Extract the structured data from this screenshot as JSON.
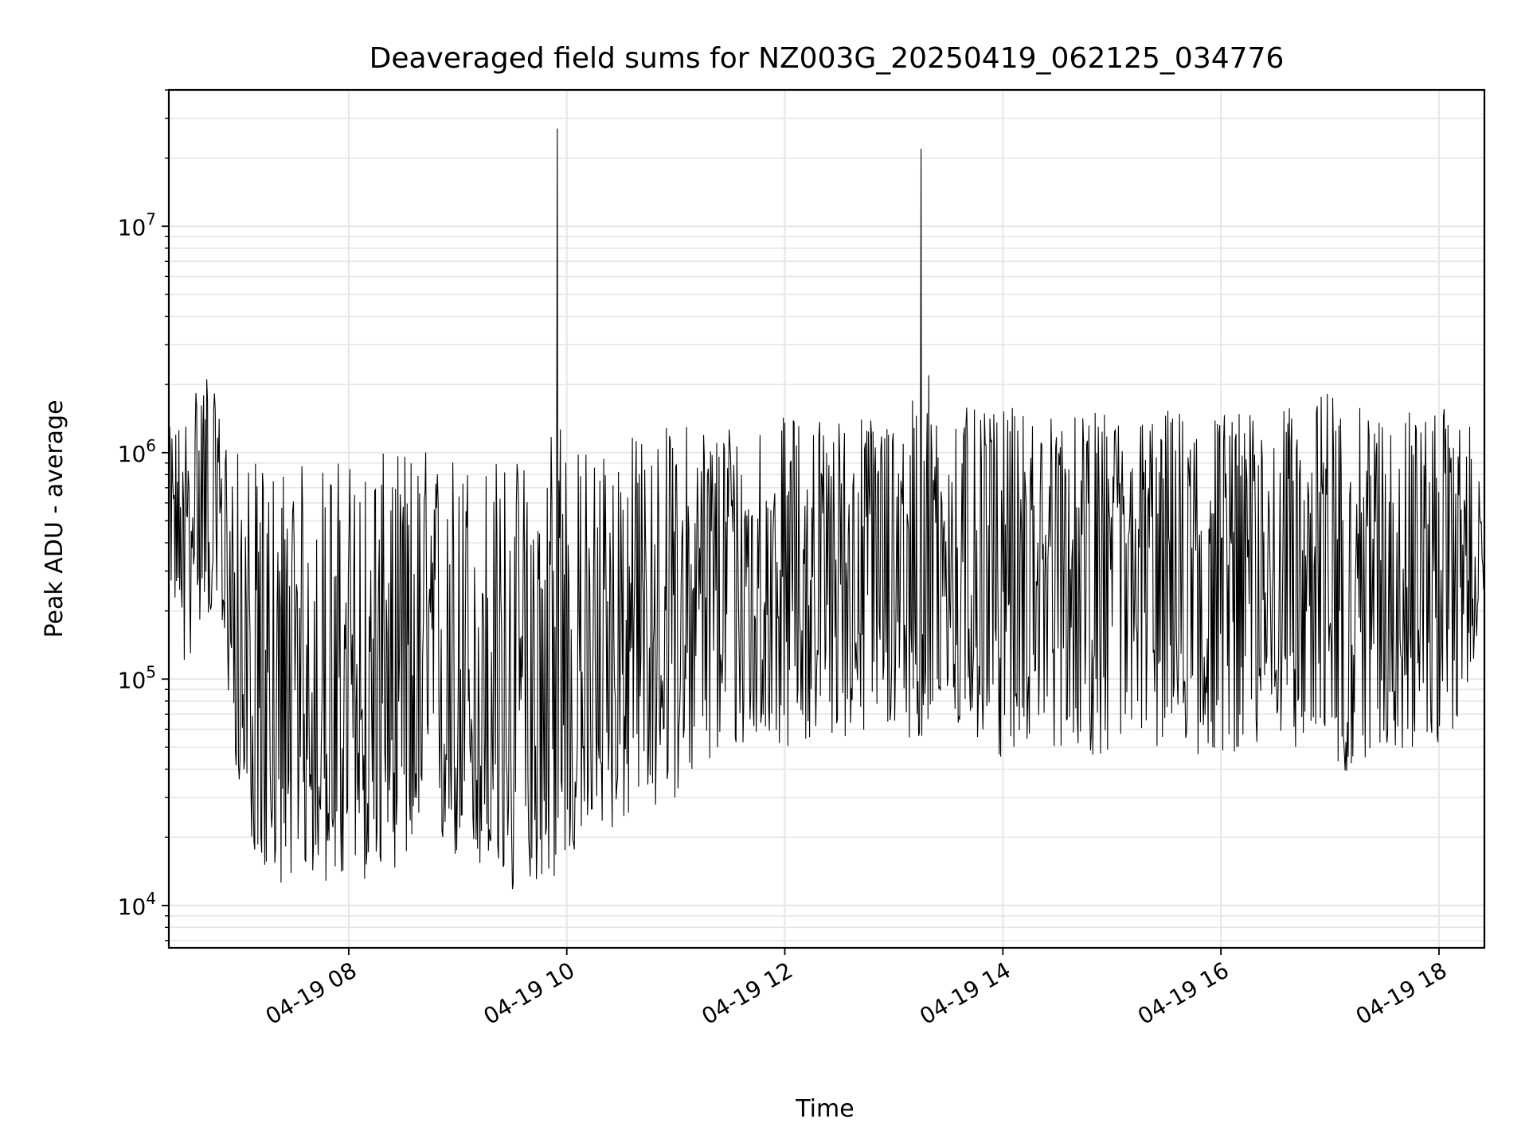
{
  "chart_data": {
    "type": "line",
    "title": "Deaveraged field sums for NZ003G_20250419_062125_034776",
    "xlabel": "Time",
    "ylabel": "Peak ADU - average",
    "y_scale": "log",
    "ylim": [
      6500,
      40000000
    ],
    "xlim": [
      "2025-04-19 06:21",
      "2025-04-19 18:25"
    ],
    "grid": true,
    "line_color": "#000000",
    "grid_color": "#e6e6e6",
    "x_ticks": [
      "2025-04-19 08:00",
      "2025-04-19 10:00",
      "2025-04-19 12:00",
      "2025-04-19 14:00",
      "2025-04-19 16:00",
      "2025-04-19 18:00"
    ],
    "x_tick_labels": [
      "04-19 08",
      "04-19 10",
      "04-19 12",
      "04-19 14",
      "04-19 16",
      "04-19 18"
    ],
    "y_ticks": [
      10000,
      100000,
      1000000,
      10000000
    ],
    "y_tick_bases": [
      "10",
      "10",
      "10",
      "10"
    ],
    "y_tick_exponents": [
      "4",
      "5",
      "6",
      "7"
    ],
    "series": [
      {
        "x": [
          "2025-04-19 06:21",
          "2025-04-19 06:30",
          "2025-04-19 06:40",
          "2025-04-19 06:50",
          "2025-04-19 07:00",
          "2025-04-19 07:10",
          "2025-04-19 07:20",
          "2025-04-19 07:30",
          "2025-04-19 07:40",
          "2025-04-19 07:50",
          "2025-04-19 08:00",
          "2025-04-19 08:10",
          "2025-04-19 08:20",
          "2025-04-19 08:30",
          "2025-04-19 08:40",
          "2025-04-19 08:50",
          "2025-04-19 09:00",
          "2025-04-19 09:10",
          "2025-04-19 09:20",
          "2025-04-19 09:30",
          "2025-04-19 09:40",
          "2025-04-19 09:50",
          "2025-04-19 09:55",
          "2025-04-19 10:00",
          "2025-04-19 10:10",
          "2025-04-19 10:20",
          "2025-04-19 10:30",
          "2025-04-19 10:40",
          "2025-04-19 10:50",
          "2025-04-19 11:00",
          "2025-04-19 11:10",
          "2025-04-19 11:20",
          "2025-04-19 11:30",
          "2025-04-19 11:40",
          "2025-04-19 11:50",
          "2025-04-19 12:00",
          "2025-04-19 12:10",
          "2025-04-19 12:20",
          "2025-04-19 12:30",
          "2025-04-19 12:40",
          "2025-04-19 12:50",
          "2025-04-19 13:00",
          "2025-04-19 13:10",
          "2025-04-19 13:15",
          "2025-04-19 13:20",
          "2025-04-19 13:30",
          "2025-04-19 13:40",
          "2025-04-19 13:50",
          "2025-04-19 14:00",
          "2025-04-19 14:10",
          "2025-04-19 14:20",
          "2025-04-19 14:30",
          "2025-04-19 14:40",
          "2025-04-19 14:50",
          "2025-04-19 15:00",
          "2025-04-19 15:10",
          "2025-04-19 15:20",
          "2025-04-19 15:30",
          "2025-04-19 15:40",
          "2025-04-19 15:50",
          "2025-04-19 16:00",
          "2025-04-19 16:10",
          "2025-04-19 16:20",
          "2025-04-19 16:30",
          "2025-04-19 16:40",
          "2025-04-19 16:50",
          "2025-04-19 17:00",
          "2025-04-19 17:10",
          "2025-04-19 17:20",
          "2025-04-19 17:30",
          "2025-04-19 17:40",
          "2025-04-19 17:50",
          "2025-04-19 18:00",
          "2025-04-19 18:10",
          "2025-04-19 18:20",
          "2025-04-19 18:25"
        ],
        "y_low": [
          300000,
          100000,
          200000,
          150000,
          30000,
          15000,
          12000,
          14000,
          13000,
          12000,
          11000,
          13000,
          14000,
          15000,
          16000,
          17000,
          15000,
          14000,
          12000,
          10000,
          13000,
          12000,
          13000,
          15000,
          18000,
          20000,
          22000,
          24000,
          26000,
          30000,
          35000,
          40000,
          45000,
          48000,
          50000,
          50000,
          52000,
          52000,
          55000,
          55000,
          55000,
          55000,
          55000,
          45000,
          50000,
          52000,
          55000,
          48000,
          42000,
          50000,
          55000,
          48000,
          50000,
          45000,
          45000,
          48000,
          50000,
          48000,
          45000,
          43000,
          45000,
          48000,
          45000,
          48000,
          50000,
          48000,
          40000,
          35000,
          45000,
          50000,
          45000,
          50000,
          48000,
          55000,
          130000,
          200000
        ],
        "y_high": [
          1300000,
          1500000,
          2800000,
          1400000,
          1000000,
          900000,
          950000,
          900000,
          920000,
          950000,
          1000000,
          950000,
          1000000,
          1050000,
          1100000,
          1000000,
          1050000,
          1000000,
          980000,
          990000,
          950000,
          1000000,
          27000000,
          1000000,
          1100000,
          1150000,
          1200000,
          1250000,
          1300000,
          1350000,
          1400000,
          1450000,
          1450000,
          1400000,
          1450000,
          1450000,
          1450000,
          1500000,
          1450000,
          1500000,
          1500000,
          1550000,
          1600000,
          22000000,
          1550000,
          1600000,
          1600000,
          1500000,
          1550000,
          1600000,
          1500000,
          1500000,
          1450000,
          1500000,
          1550000,
          1500000,
          1500000,
          1600000,
          1550000,
          1500000,
          1600000,
          1550000,
          1500000,
          1550000,
          1600000,
          1600000,
          2100000,
          1550000,
          1600000,
          1550000,
          1600000,
          1550000,
          1600000,
          1500000,
          1300000,
          350000
        ],
        "y_median": [
          500000,
          400000,
          700000,
          400000,
          80000,
          50000,
          45000,
          50000,
          55000,
          60000,
          60000,
          65000,
          70000,
          75000,
          80000,
          75000,
          70000,
          65000,
          60000,
          55000,
          55000,
          60000,
          60000,
          65000,
          80000,
          100000,
          120000,
          140000,
          160000,
          180000,
          200000,
          220000,
          240000,
          250000,
          260000,
          270000,
          280000,
          290000,
          300000,
          300000,
          300000,
          300000,
          300000,
          300000,
          300000,
          300000,
          300000,
          300000,
          300000,
          300000,
          300000,
          300000,
          300000,
          300000,
          300000,
          300000,
          300000,
          300000,
          300000,
          300000,
          300000,
          300000,
          300000,
          300000,
          300000,
          300000,
          300000,
          300000,
          300000,
          300000,
          300000,
          300000,
          350000,
          400000,
          250000,
          300000
        ]
      }
    ]
  }
}
